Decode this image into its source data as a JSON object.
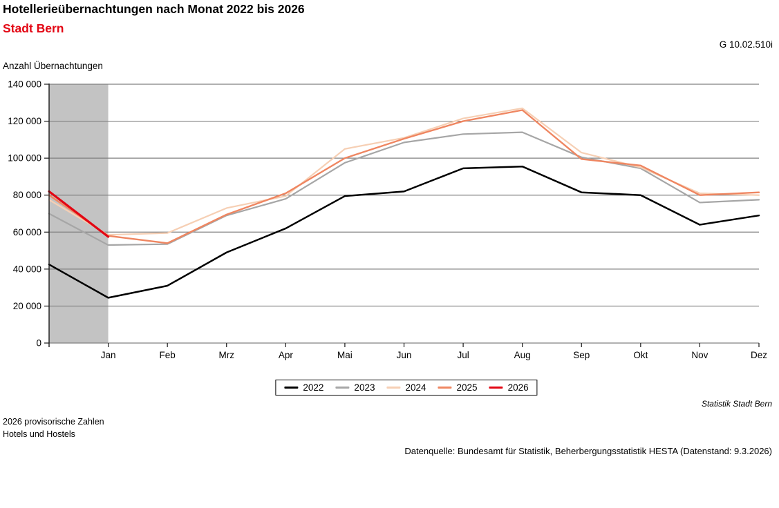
{
  "header": {
    "title": "Hotellerieübernachtungen nach Monat 2022 bis 2026",
    "subtitle": "Stadt Bern",
    "figure_code": "G 10.02.510i"
  },
  "chart_data": {
    "type": "line",
    "title": "Hotellerieübernachtungen nach Monat 2022 bis 2026",
    "subtitle": "Stadt Bern",
    "ylabel": "Anzahl Übernachtungen",
    "xlabel": "",
    "ylim": [
      0,
      140000
    ],
    "y_tick_step": 20000,
    "y_tick_labels": [
      "0",
      "20 000",
      "40 000",
      "60 000",
      "80 000",
      "100 000",
      "120 000",
      "140 000"
    ],
    "grid": "horizontal",
    "legend_position": "bottom-center",
    "gridline_color": "#808080",
    "categories": [
      "",
      "Jan",
      "Feb",
      "Mrz",
      "Apr",
      "Mai",
      "Jun",
      "Jul",
      "Aug",
      "Sep",
      "Okt",
      "Nov",
      "Dez"
    ],
    "shaded_band": {
      "x_start_index": 0,
      "x_end_index": 1,
      "color": "#c3c3c3"
    },
    "series": [
      {
        "name": "2022",
        "color": "#000000",
        "width": 2.5,
        "values": [
          42500,
          24500,
          31000,
          49000,
          62000,
          79500,
          82000,
          94500,
          95500,
          81500,
          80000,
          64000,
          69000
        ]
      },
      {
        "name": "2023",
        "color": "#a6a6a6",
        "width": 2.2,
        "values": [
          70000,
          53000,
          53500,
          69000,
          78000,
          97500,
          108500,
          113000,
          114000,
          100500,
          94500,
          76000,
          77500
        ]
      },
      {
        "name": "2024",
        "color": "#f6cfb4",
        "width": 2.2,
        "values": [
          77500,
          58500,
          59500,
          73000,
          79500,
          105000,
          111000,
          121500,
          127000,
          103000,
          95000,
          81000,
          80000
        ]
      },
      {
        "name": "2025",
        "color": "#ef8661",
        "width": 2.4,
        "values": [
          80000,
          58000,
          54000,
          69500,
          81000,
          100000,
          110500,
          120000,
          126000,
          99500,
          96000,
          80000,
          81500
        ]
      },
      {
        "name": "2026",
        "color": "#e30613",
        "width": 3.2,
        "values": [
          82000,
          57500
        ]
      }
    ]
  },
  "footer": {
    "attribution": "Statistik Stadt Bern",
    "note_line1": "2026 provisorische Zahlen",
    "note_line2": "Hotels und Hostels",
    "source": "Datenquelle: Bundesamt für Statistik, Beherbergungsstatistik HESTA (Datenstand: 9.3.2026)"
  },
  "accent_colors": {
    "subtitle_red": "#e30613",
    "band_gray": "#c3c3c3",
    "gridline_gray": "#808080"
  }
}
